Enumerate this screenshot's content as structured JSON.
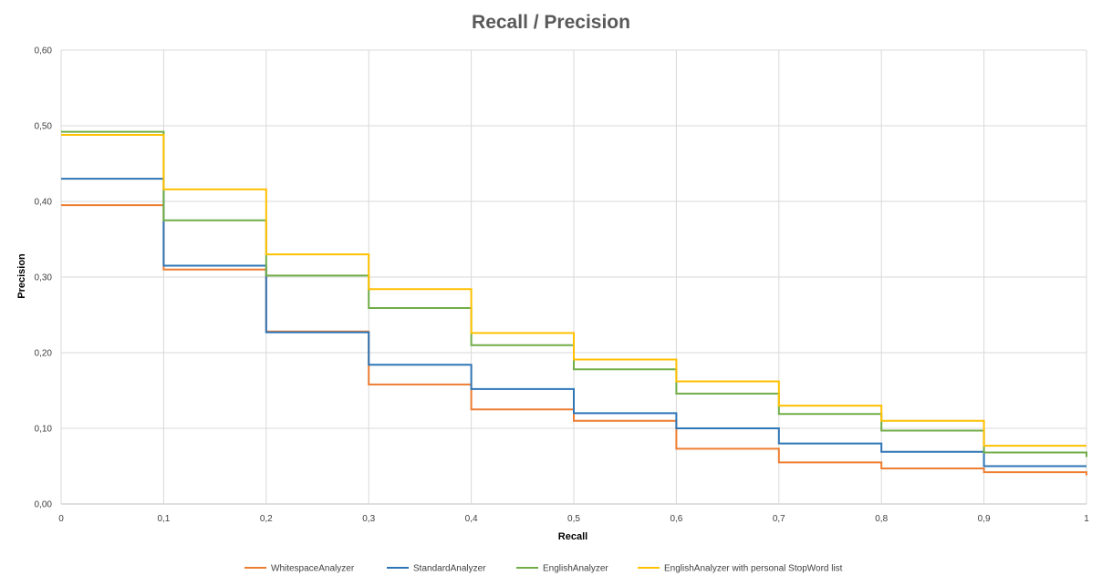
{
  "chart_data": {
    "type": "line",
    "title": "Recall / Precision",
    "xlabel": "Recall",
    "ylabel": "Precision",
    "xlim": [
      0,
      1
    ],
    "ylim": [
      0,
      0.6
    ],
    "grid": true,
    "legend_position": "bottom",
    "x_ticks": [
      "0",
      "0,1",
      "0,2",
      "0,3",
      "0,4",
      "0,5",
      "0,6",
      "0,7",
      "0,8",
      "0,9",
      "1"
    ],
    "y_ticks": [
      "0,00",
      "0,10",
      "0,20",
      "0,30",
      "0,40",
      "0,50",
      "0,60"
    ],
    "x": [
      0,
      0.1,
      0.2,
      0.3,
      0.4,
      0.5,
      0.6,
      0.7,
      0.8,
      0.9,
      1
    ],
    "step": true,
    "series": [
      {
        "name": "WhitespaceAnalyzer",
        "color": "#ED7D31",
        "values": [
          0.395,
          0.31,
          0.228,
          0.158,
          0.125,
          0.11,
          0.073,
          0.055,
          0.047,
          0.042,
          0.038
        ]
      },
      {
        "name": "StandardAnalyzer",
        "color": "#2E75B6",
        "values": [
          0.43,
          0.315,
          0.227,
          0.184,
          0.152,
          0.12,
          0.1,
          0.08,
          0.069,
          0.05,
          0.05
        ]
      },
      {
        "name": "EnglishAnalyzer",
        "color": "#70AD47",
        "values": [
          0.492,
          0.375,
          0.302,
          0.259,
          0.21,
          0.178,
          0.146,
          0.119,
          0.097,
          0.068,
          0.062
        ]
      },
      {
        "name": "EnglishAnalyzer with personal StopWord list",
        "color": "#FFC000",
        "values": [
          0.488,
          0.416,
          0.33,
          0.284,
          0.226,
          0.191,
          0.162,
          0.13,
          0.11,
          0.077,
          0.077
        ]
      }
    ]
  }
}
